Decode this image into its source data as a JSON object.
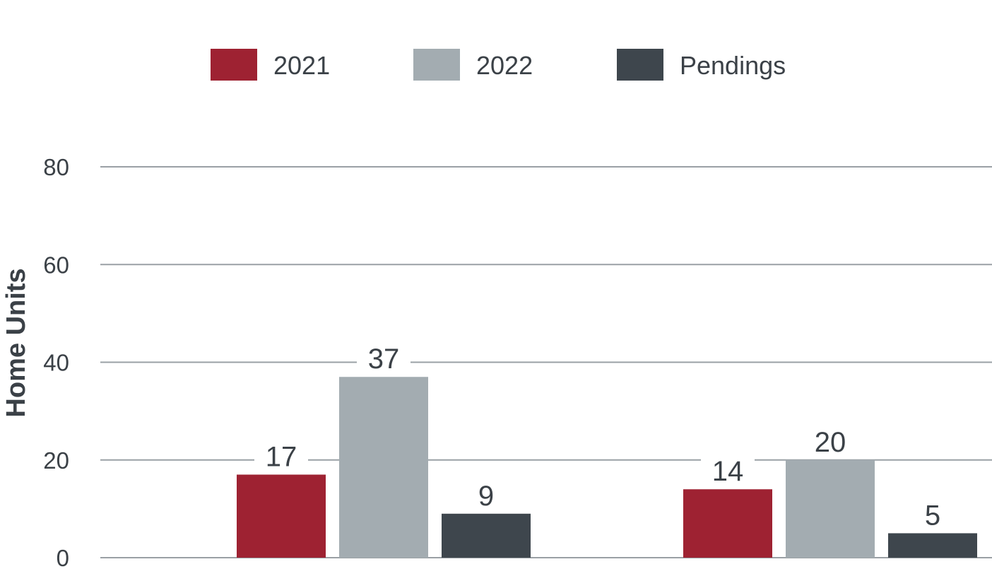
{
  "chart_data": {
    "type": "bar",
    "title": "",
    "xlabel": "",
    "ylabel": "Home Units",
    "categories": [
      "",
      ""
    ],
    "series": [
      {
        "name": "2021",
        "color": "#9e2232",
        "values": [
          17,
          14
        ]
      },
      {
        "name": "2022",
        "color": "#a3acb1",
        "values": [
          37,
          20
        ]
      },
      {
        "name": "Pendings",
        "color": "#3e464d",
        "values": [
          9,
          5
        ]
      }
    ],
    "ylim": [
      0,
      80
    ],
    "yticks": [
      0,
      20,
      40,
      60,
      80
    ],
    "grid": true,
    "legend_position": "top"
  }
}
